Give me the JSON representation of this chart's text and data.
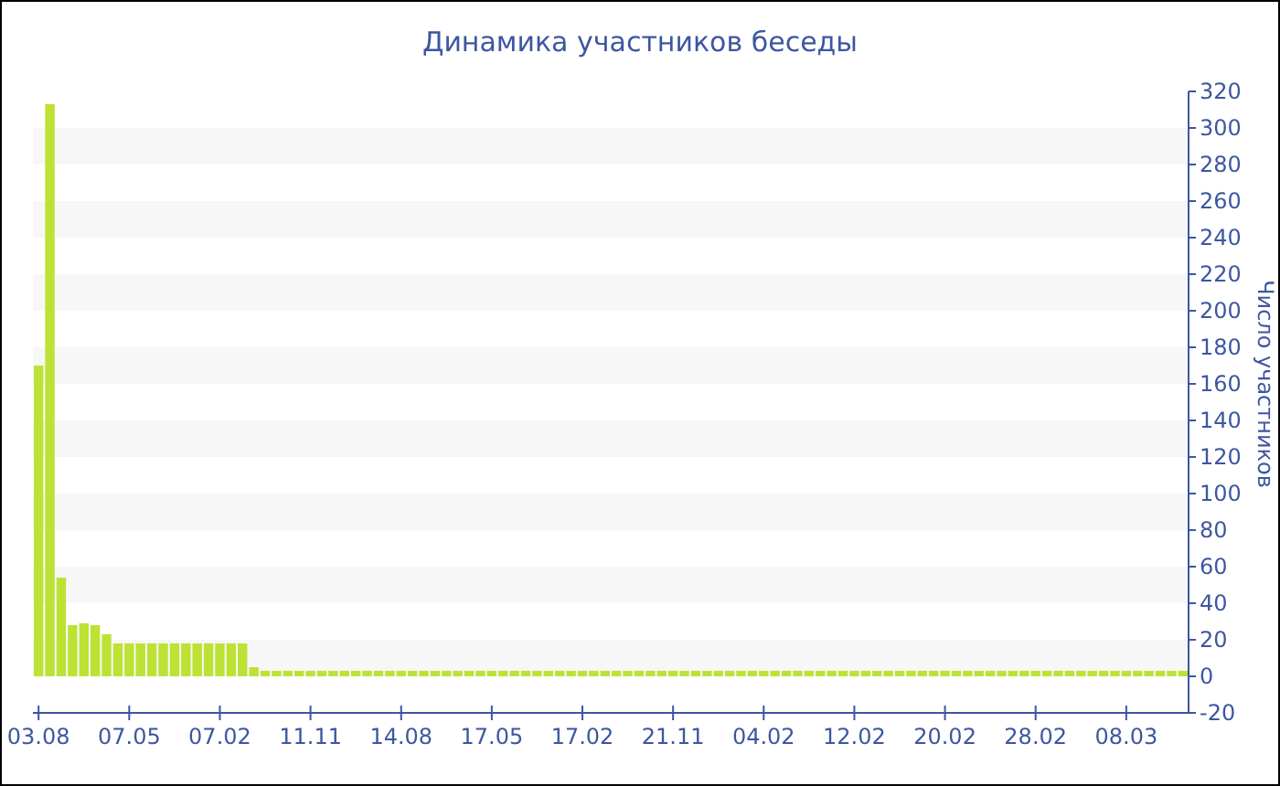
{
  "chart_data": {
    "type": "bar",
    "title": "Динамика участников беседы",
    "ylabel": "Число участников",
    "categories": [
      "03.08",
      null,
      null,
      null,
      null,
      null,
      null,
      null,
      "07.05",
      null,
      null,
      null,
      null,
      null,
      null,
      null,
      "07.02",
      null,
      null,
      null,
      null,
      null,
      null,
      null,
      "11.11",
      null,
      null,
      null,
      null,
      null,
      null,
      null,
      "14.08",
      null,
      null,
      null,
      null,
      null,
      null,
      null,
      "17.05",
      null,
      null,
      null,
      null,
      null,
      null,
      null,
      "17.02",
      null,
      null,
      null,
      null,
      null,
      null,
      null,
      "21.11",
      null,
      null,
      null,
      null,
      null,
      null,
      null,
      "04.02",
      null,
      null,
      null,
      null,
      null,
      null,
      null,
      "12.02",
      null,
      null,
      null,
      null,
      null,
      null,
      null,
      "20.02",
      null,
      null,
      null,
      null,
      null,
      null,
      null,
      "28.02",
      null,
      null,
      null,
      null,
      null,
      null,
      null,
      "08.03",
      null,
      null,
      null,
      null,
      null
    ],
    "values": [
      170,
      313,
      54,
      28,
      29,
      28,
      23,
      18,
      18,
      18,
      18,
      18,
      18,
      18,
      18,
      18,
      18,
      18,
      18,
      5,
      3,
      3,
      3,
      3,
      3,
      3,
      3,
      3,
      3,
      3,
      3,
      3,
      3,
      3,
      3,
      3,
      3,
      3,
      3,
      3,
      3,
      3,
      3,
      3,
      3,
      3,
      3,
      3,
      3,
      3,
      3,
      3,
      3,
      3,
      3,
      3,
      3,
      3,
      3,
      3,
      3,
      3,
      3,
      3,
      3,
      3,
      3,
      3,
      3,
      3,
      3,
      3,
      3,
      3,
      3,
      3,
      3,
      3,
      3,
      3,
      3,
      3,
      3,
      3,
      3,
      3,
      3,
      3,
      3,
      3,
      3,
      3,
      3,
      3,
      3,
      3,
      3,
      3,
      3,
      3,
      3,
      3
    ],
    "color": "#bde234",
    "ylim": [
      -20,
      320
    ],
    "yticks": [
      -20,
      0,
      20,
      40,
      60,
      80,
      100,
      120,
      140,
      160,
      180,
      200,
      220,
      240,
      260,
      280,
      300,
      320
    ]
  }
}
